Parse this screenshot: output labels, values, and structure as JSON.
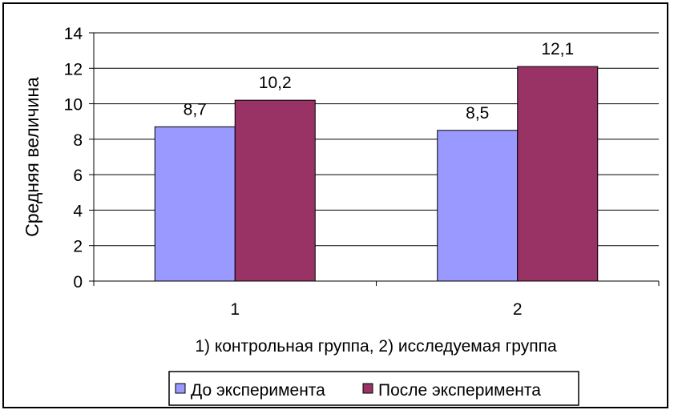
{
  "chart_data": {
    "type": "bar",
    "categories": [
      "1",
      "2"
    ],
    "series": [
      {
        "name": "До эксперимента",
        "values": [
          8.7,
          8.5
        ],
        "labels": [
          "8,7",
          "8,5"
        ],
        "color": "#9999ff"
      },
      {
        "name": "После эксперимента",
        "values": [
          10.2,
          12.1
        ],
        "labels": [
          "10,2",
          "12,1"
        ],
        "color": "#993366"
      }
    ],
    "xlabel": "1) контрольная группа, 2) исследуемая группа",
    "ylabel": "Средняя величина",
    "ylim": [
      0,
      14
    ],
    "yticks": [
      0,
      2,
      4,
      6,
      8,
      10,
      12,
      14
    ],
    "grid": true,
    "legend_position": "bottom"
  }
}
